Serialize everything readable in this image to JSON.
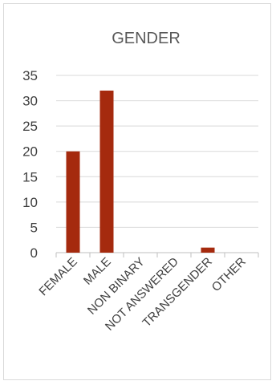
{
  "chart_data": {
    "type": "bar",
    "title": "GENDER",
    "xlabel": "",
    "ylabel": "",
    "categories": [
      "FEMALE",
      "MALE",
      "NON BINARY",
      "NOT ANSWERED",
      "TRANSGENDER",
      "OTHER"
    ],
    "values": [
      20,
      32,
      0,
      0,
      1,
      0
    ],
    "yticks": [
      "0",
      "5",
      "10",
      "15",
      "20",
      "25",
      "30",
      "35"
    ],
    "ylim": [
      0,
      35
    ],
    "grid": true,
    "legend": "none",
    "bar_color": "#a52a0e",
    "grid_color": "#d9d9d9",
    "axis_color": "#bfbfbf"
  }
}
